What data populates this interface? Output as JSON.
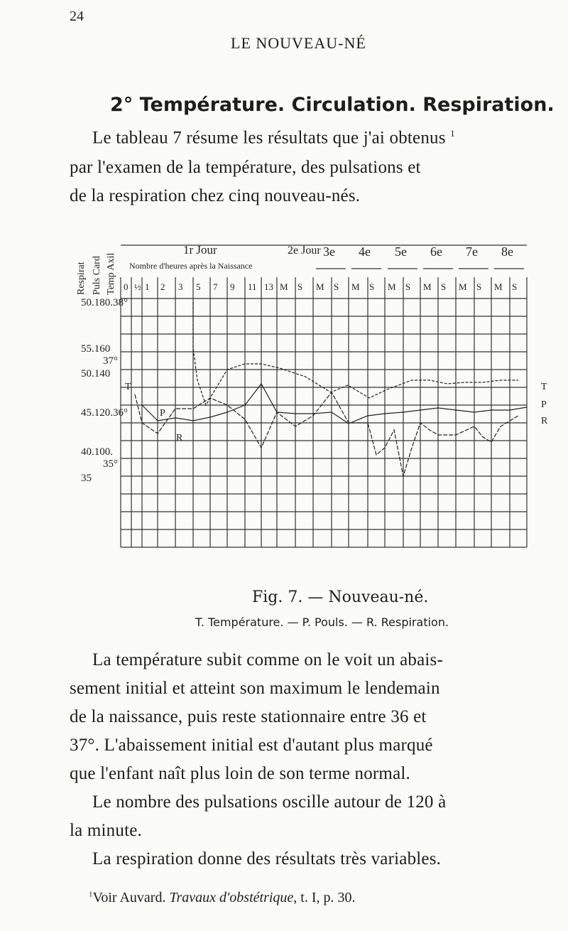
{
  "header": {
    "page_number": "24",
    "running_title": "LE NOUVEAU-NÉ"
  },
  "section": {
    "heading": "2° Température. Circulation. Respiration."
  },
  "intro": {
    "lines": [
      "Le tableau 7 résume les résultats que j'ai obtenus",
      "par l'examen de la température, des pulsations et",
      "de la respiration chez cinq nouveau-nés."
    ],
    "footnote_ref": "1"
  },
  "figure": {
    "row_headers": [
      "Respirat",
      "Puls Card",
      "Temp Axil"
    ],
    "first_day": "1r Jour",
    "hours_label": "Nombre d'heures après la Naissance",
    "hours": [
      "0",
      "½",
      "1",
      "2",
      "3",
      "5",
      "7",
      "9",
      "11",
      "13"
    ],
    "second_day": "2e Jour",
    "days": [
      "3e",
      "4e",
      "5e",
      "6e",
      "7e",
      "8e"
    ],
    "morning": "M",
    "evening": "S",
    "y_labels": [
      "50.180.38°",
      "55.160",
      "37°",
      "50.140",
      "45.120.36°",
      "40.100.",
      "35°",
      "35"
    ],
    "legend_letters": [
      "T",
      "P",
      "R"
    ]
  },
  "caption": {
    "title": "Fig. 7. — Nouveau-né.",
    "legend": "T. Température. — P. Pouls. — R. Respiration."
  },
  "body": {
    "lines": [
      "La température subit comme on le voit un abais-",
      "sement initial et atteint son maximum le lendemain",
      "de la naissance, puis reste stationnaire entre 36 et",
      "37°. L'abaissement initial est d'autant plus marqué",
      "que l'enfant naît plus loin de son terme normal.",
      "Le nombre des pulsations oscille autour de 120 à",
      "la minute.",
      "La respiration donne des résultats très variables."
    ]
  },
  "footnote": {
    "marker": "1",
    "text": "Voir Auvard.",
    "work": "Travaux d'obstétrique",
    "reference": ", t. I, p. 30."
  }
}
